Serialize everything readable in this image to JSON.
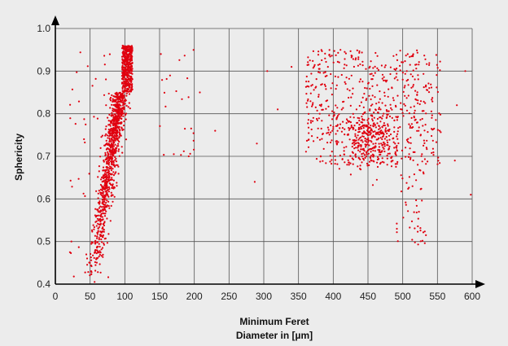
{
  "colors": {
    "background": "#ececec",
    "grid": "#555555",
    "axis": "#000000",
    "points": "#e0000f"
  },
  "chart_data": {
    "type": "scatter",
    "title": "",
    "xlabel_lines": [
      "Minimum Feret",
      "Diameter in [µm]"
    ],
    "ylabel": "Sphericity",
    "xlim": [
      0,
      600
    ],
    "ylim": [
      0.4,
      1.0
    ],
    "grid": true,
    "x_ticks": [
      "0",
      "50",
      "100",
      "150",
      "200",
      "250",
      "300",
      "350",
      "400",
      "450",
      "500",
      "550",
      "600"
    ],
    "y_ticks": [
      "0.4",
      "0.5",
      "0.6",
      "0.7",
      "0.8",
      "0.9",
      "1.0"
    ],
    "clusters": [
      {
        "name": "main band",
        "x_range": [
          50,
          112
        ],
        "y_range": [
          0.4,
          0.96
        ],
        "approx_points": 1400,
        "trend": "sphericity rises with diameter; densest at x 95-110, y 0.75-0.96"
      },
      {
        "name": "sparse left",
        "x_range": [
          20,
          80
        ],
        "y_range": [
          0.4,
          0.95
        ],
        "approx_points": 45
      },
      {
        "name": "small group",
        "x_range": [
          150,
          200
        ],
        "y_range": [
          0.7,
          0.95
        ],
        "approx_points": 25
      },
      {
        "name": "right cloud",
        "x_range": [
          355,
          560
        ],
        "y_range": [
          0.68,
          0.95
        ],
        "approx_points": 900,
        "dense_spot": [
          455,
          0.74
        ]
      },
      {
        "name": "right tail",
        "x_range": [
          490,
          540
        ],
        "y_range": [
          0.49,
          0.7
        ],
        "approx_points": 50
      }
    ]
  }
}
